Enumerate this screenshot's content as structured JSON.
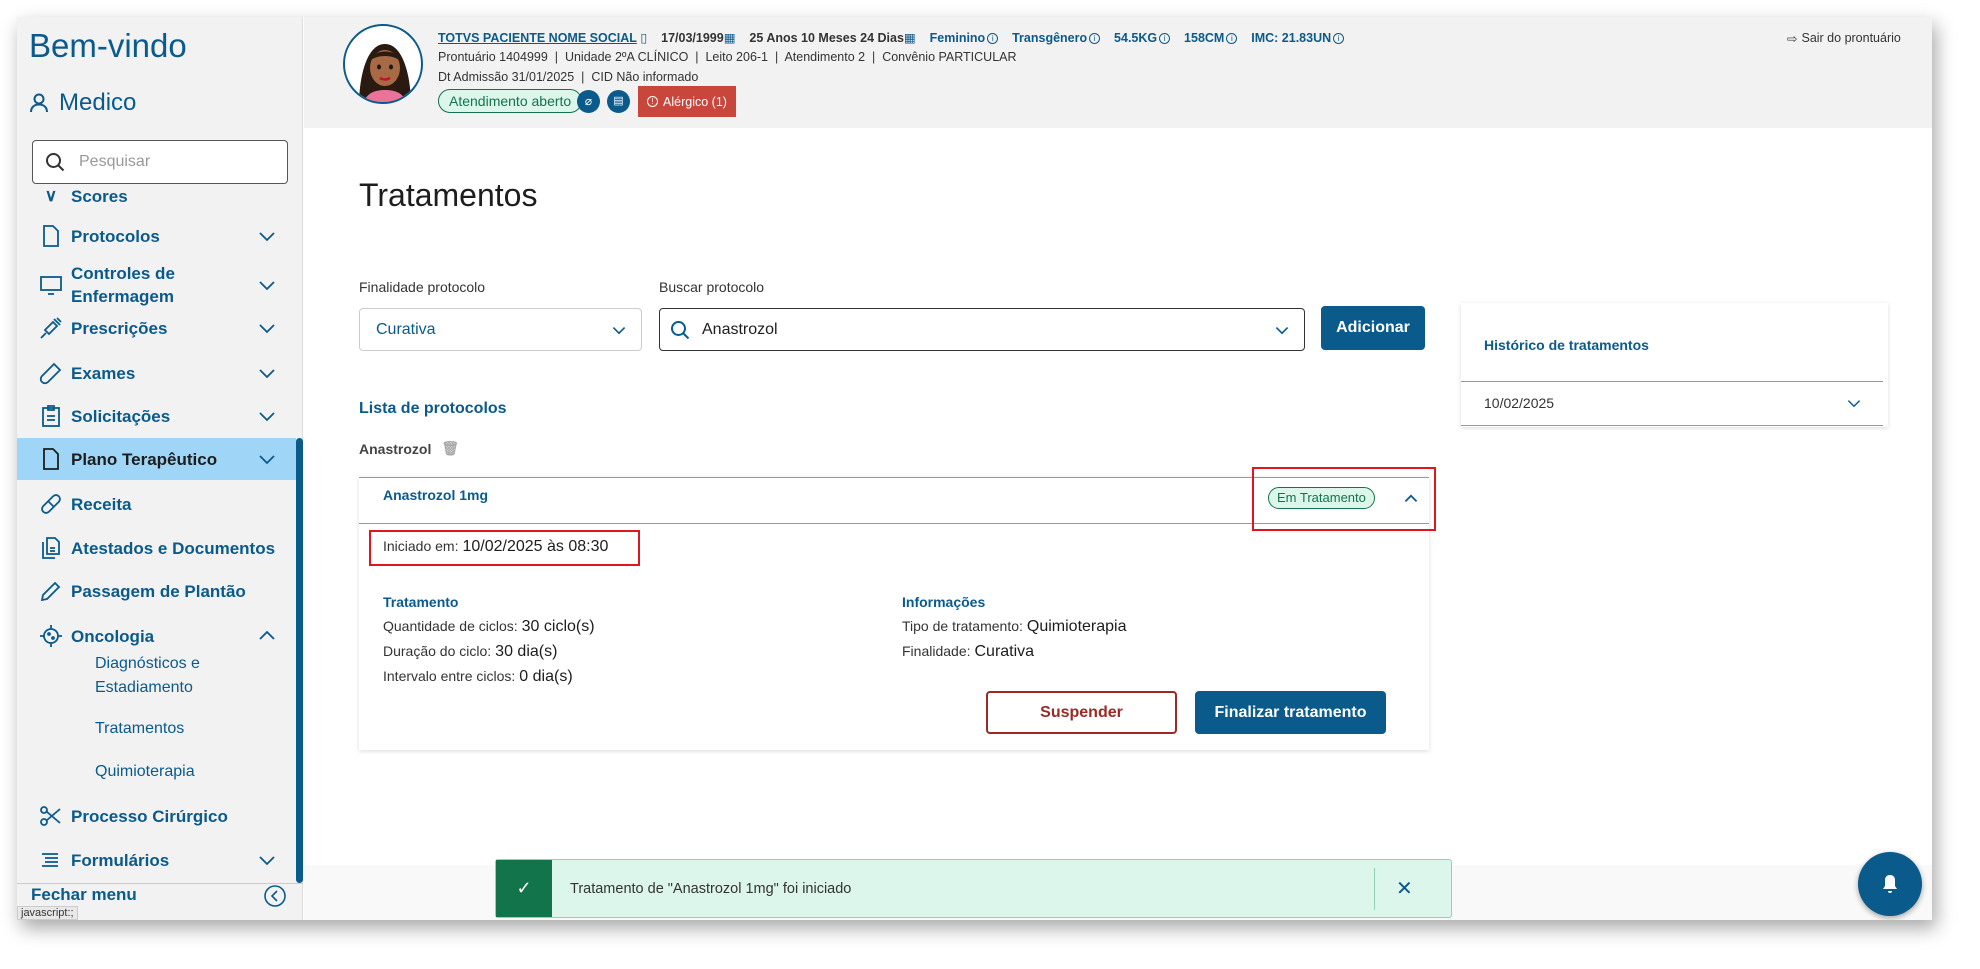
{
  "sidebar": {
    "welcome": "Bem-vindo",
    "user": "Medico",
    "search_placeholder": "Pesquisar",
    "items": [
      {
        "label": "Scores",
        "icon": "scores-icon"
      },
      {
        "label": "Protocolos",
        "icon": "document-icon"
      },
      {
        "label": "Controles de Enfermagem",
        "icon": "monitor-icon"
      },
      {
        "label": "Prescrições",
        "icon": "syringe-icon"
      },
      {
        "label": "Exames",
        "icon": "test-tube-icon"
      },
      {
        "label": "Solicitações",
        "icon": "clipboard-icon"
      },
      {
        "label": "Plano Terapêutico",
        "icon": "document-icon"
      },
      {
        "label": "Receita",
        "icon": "pill-icon"
      },
      {
        "label": "Atestados e Documentos",
        "icon": "documents-icon"
      },
      {
        "label": "Passagem de Plantão",
        "icon": "pencil-icon"
      },
      {
        "label": "Oncologia",
        "icon": "virus-icon"
      },
      {
        "label": "Processo Cirúrgico",
        "icon": "scissors-icon"
      },
      {
        "label": "Formulários",
        "icon": "list-icon"
      }
    ],
    "oncologia_sub": [
      "Diagnósticos e Estadiamento",
      "Tratamentos",
      "Quimioterapia"
    ],
    "close_menu": "Fechar menu",
    "status_bar": "javascript:;"
  },
  "header": {
    "patient_name": "TOTVS PACIENTE NOME SOCIAL",
    "birth_date": "17/03/1999",
    "age": "25 Anos 10 Meses 24 Dias",
    "gender": "Feminino",
    "identity": "Transgênero",
    "weight": "54.5KG",
    "height": "158CM",
    "imc": "IMC: 21.83UN",
    "line2": "Prontuário 1404999  |  Unidade 2ºA CLÍNICO  |  Leito 206-1  |  Atendimento 2  |  Convênio PARTICULAR",
    "line3": "Dt Admissão 31/01/2025  |  CID Não informado",
    "status_badge": "Atendimento aberto",
    "allergy": "Alérgico (1)",
    "exit": "Sair do prontuário"
  },
  "main": {
    "title": "Tratamentos",
    "finalidade_label": "Finalidade protocolo",
    "finalidade_value": "Curativa",
    "buscar_label": "Buscar protocolo",
    "buscar_value": "Anastrozol",
    "add_button": "Adicionar",
    "list_title": "Lista de protocolos",
    "group_name": "Anastrozol",
    "protocol": {
      "name": "Anastrozol 1mg",
      "status": "Em Tratamento",
      "started_label": "Iniciado em:",
      "started_value": "10/02/2025 às 08:30",
      "treatment_heading": "Tratamento",
      "treatment_rows": [
        {
          "label": "Quantidade de ciclos:",
          "value": "30 ciclo(s)"
        },
        {
          "label": "Duração do ciclo:",
          "value": "30 dia(s)"
        },
        {
          "label": "Intervalo entre ciclos:",
          "value": "0 dia(s)"
        }
      ],
      "info_heading": "Informações",
      "info_rows": [
        {
          "label": "Tipo de tratamento:",
          "value": "Quimioterapia"
        },
        {
          "label": "Finalidade:",
          "value": "Curativa"
        }
      ],
      "suspend_button": "Suspender",
      "finish_button": "Finalizar tratamento"
    },
    "history": {
      "title": "Histórico de tratamentos",
      "items": [
        "10/02/2025"
      ]
    }
  },
  "toast": {
    "message": "Tratamento de \"Anastrozol 1mg\" foi iniciado"
  },
  "colors": {
    "primary": "#0a5a8c",
    "active_bg": "#9fd6f7",
    "success": "#12744a",
    "toast_bg": "#dcf6ec",
    "danger": "#c9463d",
    "highlight_box": "#e0161e"
  }
}
